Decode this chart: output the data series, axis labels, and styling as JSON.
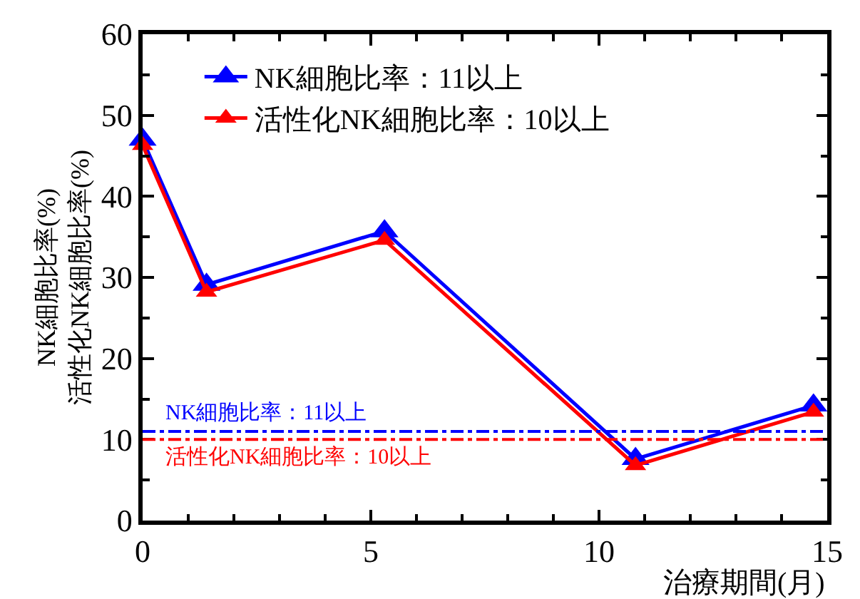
{
  "chart_data": {
    "type": "line",
    "xlabel": "治療期間(月)",
    "ylabel": "NK細胞比率(%)\n活性化NK細胞比率(%)",
    "x": [
      0,
      1.4,
      5.3,
      10.8,
      14.7
    ],
    "series": [
      {
        "name": "NK細胞比率：11以上",
        "color": "#0000ff",
        "values": [
          47,
          29.1,
          35.7,
          7.6,
          14.2
        ]
      },
      {
        "name": "活性化NK細胞比率：10以上",
        "color": "#ff0000",
        "values": [
          46.3,
          28.2,
          34.6,
          6.8,
          13.4
        ]
      }
    ],
    "xlim": [
      0,
      15
    ],
    "xticks": [
      0,
      5,
      10,
      15
    ],
    "ylim": [
      0,
      60
    ],
    "yticks": [
      0,
      10,
      20,
      30,
      40,
      50,
      60
    ],
    "ref_lines": [
      {
        "axis": "y",
        "value": 11,
        "label": "NK細胞比率：11以上",
        "color": "#0000ff",
        "line_style": "dashed"
      },
      {
        "axis": "y",
        "value": 10,
        "label": "活性化NK細胞比率：10以上",
        "color": "#ff0000",
        "line_style": "dashed"
      }
    ],
    "legend": "top left",
    "marker": "triangle",
    "line_style": "solid"
  }
}
